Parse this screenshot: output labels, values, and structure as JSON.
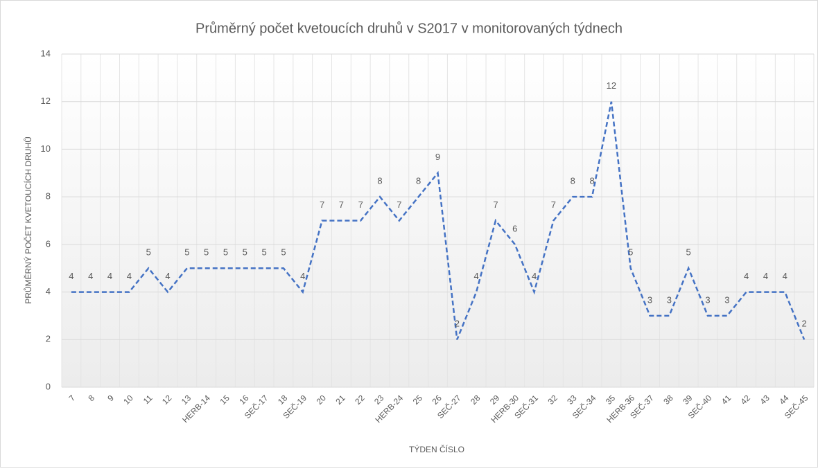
{
  "chart_data": {
    "type": "line",
    "title": "Průměrný počet kvetoucích druhů v S2017 v monitorovaných týdnech",
    "x_label": "TÝDEN ČÍSLO",
    "y_label": "PRŮMĚRNÝ POČET KVETOUCÍCH DRUHŮ",
    "categories": [
      "7",
      "8",
      "9",
      "10",
      "11",
      "12",
      "13",
      "HERB-14",
      "15",
      "16",
      "SEČ-17",
      "18",
      "SEČ-19",
      "20",
      "21",
      "22",
      "23",
      "HERB-24",
      "25",
      "26",
      "SEČ-27",
      "28",
      "29",
      "HERB-30",
      "SEČ-31",
      "32",
      "33",
      "SEČ-34",
      "35",
      "HERB-36",
      "SEČ-37",
      "38",
      "39",
      "SEČ-40",
      "41",
      "42",
      "43",
      "44",
      "SEČ-45"
    ],
    "values": [
      4,
      4,
      4,
      4,
      5,
      4,
      5,
      5,
      5,
      5,
      5,
      5,
      4,
      7,
      7,
      7,
      8,
      7,
      8,
      9,
      2,
      4,
      7,
      6,
      4,
      7,
      8,
      8,
      12,
      5,
      3,
      3,
      5,
      3,
      3,
      4,
      4,
      4,
      2
    ],
    "color": "#4472c4",
    "line_style": "dashed",
    "ylim": [
      0,
      14
    ],
    "yticks": [
      0,
      2,
      4,
      6,
      8,
      10,
      12,
      14
    ],
    "grid": true
  }
}
